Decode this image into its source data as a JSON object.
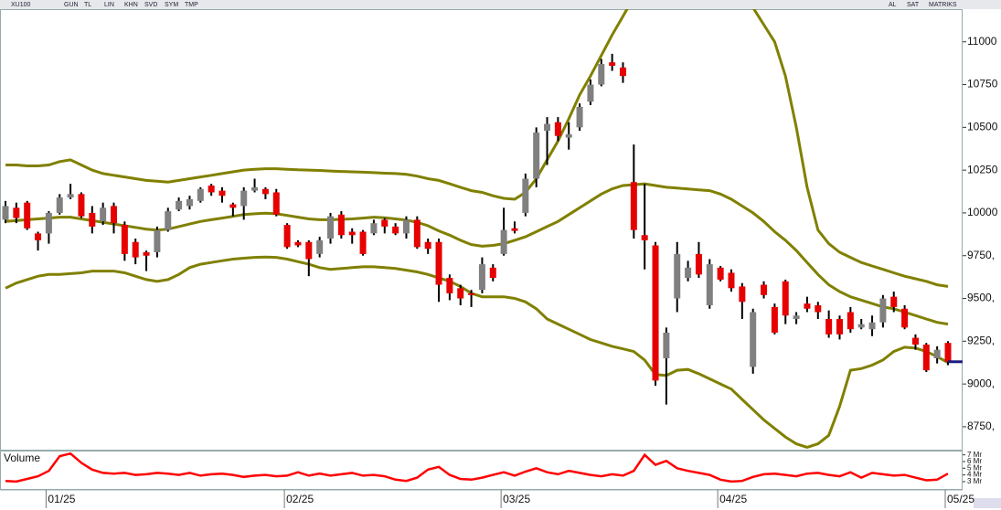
{
  "toolbar": {
    "left": [
      "XU100",
      "GUN",
      "TL",
      "LIN",
      "KHN",
      "SVD",
      "SYM",
      "TMP"
    ],
    "right": [
      "AL",
      "SAT",
      "MATRIKS"
    ]
  },
  "chart_data": {
    "type": "candlestick",
    "up_color": "#808080",
    "down_color": "#e60000",
    "wick_color": "#000000",
    "open": [
      9960,
      10030,
      10060,
      9880,
      9880,
      10000,
      10090,
      10110,
      10000,
      9950,
      10040,
      9930,
      9830,
      9770,
      9770,
      9900,
      10020,
      10040,
      10070,
      10160,
      10130,
      10050,
      10040,
      10130,
      10140,
      10120,
      9930,
      9830,
      9830,
      9760,
      9850,
      9990,
      9890,
      9890,
      9880,
      9960,
      9920,
      9880,
      9960,
      9830,
      9830,
      9620,
      9560,
      9530,
      9550,
      9680,
      9760,
      9910,
      10000,
      10200,
      10480,
      10530,
      10440,
      10500,
      10650,
      10750,
      10880,
      10850,
      10180,
      9870,
      9810,
      9150,
      9500,
      9620,
      9760,
      9460,
      9680,
      9650,
      9570,
      9100,
      9580,
      9450,
      9600,
      9380,
      9470,
      9460,
      9380,
      9380,
      9420,
      9330,
      9320,
      9360,
      9510,
      9440,
      9270,
      9230,
      9150,
      9240
    ],
    "high": [
      10070,
      10060,
      10070,
      9890,
      10010,
      10110,
      10170,
      10120,
      10040,
      10060,
      10060,
      9950,
      9850,
      9780,
      9920,
      10030,
      10090,
      10100,
      10150,
      10170,
      10150,
      10060,
      10150,
      10200,
      10150,
      10140,
      9940,
      9840,
      9840,
      9860,
      10000,
      10010,
      9910,
      9900,
      9960,
      9970,
      9940,
      9980,
      9980,
      9850,
      9850,
      9640,
      9580,
      9550,
      9740,
      9700,
      10030,
      9950,
      10230,
      10500,
      10560,
      10560,
      10530,
      10640,
      10780,
      10900,
      10930,
      10880,
      10400,
      10170,
      9830,
      9330,
      9830,
      9720,
      9830,
      9730,
      9690,
      9670,
      9590,
      9440,
      9600,
      9470,
      9610,
      9420,
      9510,
      9480,
      9430,
      9400,
      9450,
      9380,
      9400,
      9520,
      9540,
      9460,
      9290,
      9240,
      9220,
      9250
    ],
    "low": [
      9940,
      9940,
      9900,
      9780,
      9820,
      9990,
      10080,
      9970,
      9880,
      9930,
      9880,
      9720,
      9700,
      9660,
      9740,
      9890,
      10010,
      10020,
      10060,
      10100,
      10060,
      9980,
      9960,
      10120,
      10080,
      9980,
      9790,
      9800,
      9630,
      9740,
      9820,
      9850,
      9820,
      9750,
      9870,
      9880,
      9870,
      9850,
      9790,
      9760,
      9480,
      9490,
      9460,
      9450,
      9530,
      9600,
      9750,
      9880,
      9980,
      10150,
      10280,
      10420,
      10370,
      10480,
      10630,
      10740,
      10830,
      10760,
      9850,
      9670,
      8990,
      8880,
      9420,
      9600,
      9620,
      9440,
      9600,
      9540,
      9380,
      9060,
      9500,
      9290,
      9350,
      9350,
      9420,
      9380,
      9270,
      9260,
      9300,
      9320,
      9280,
      9330,
      9420,
      9320,
      9200,
      9070,
      9120,
      9110
    ],
    "close": [
      10040,
      9970,
      9910,
      9840,
      10000,
      10090,
      10110,
      9980,
      9920,
      10030,
      9940,
      9760,
      9740,
      9750,
      9900,
      10010,
      10070,
      10080,
      10140,
      10120,
      10100,
      10030,
      10130,
      10150,
      10110,
      9990,
      9800,
      9810,
      9730,
      9840,
      9980,
      9870,
      9870,
      9760,
      9940,
      9920,
      9880,
      9960,
      9800,
      9790,
      9580,
      9530,
      9500,
      9520,
      9700,
      9620,
      9900,
      9895,
      10200,
      10470,
      10520,
      10450,
      10460,
      10620,
      10750,
      10870,
      10860,
      10800,
      9900,
      9840,
      9020,
      9300,
      9760,
      9680,
      9640,
      9700,
      9610,
      9560,
      9480,
      9420,
      9520,
      9300,
      9400,
      9400,
      9440,
      9420,
      9290,
      9290,
      9320,
      9350,
      9360,
      9500,
      9450,
      9330,
      9230,
      9080,
      9200,
      9130
    ],
    "bands": {
      "color": "#808000",
      "upper": [
        10280,
        10280,
        10275,
        10275,
        10280,
        10300,
        10310,
        10280,
        10250,
        10230,
        10220,
        10210,
        10200,
        10190,
        10185,
        10180,
        10190,
        10200,
        10210,
        10220,
        10230,
        10240,
        10250,
        10255,
        10258,
        10258,
        10255,
        10252,
        10250,
        10248,
        10245,
        10242,
        10240,
        10238,
        10235,
        10232,
        10230,
        10225,
        10215,
        10200,
        10190,
        10170,
        10150,
        10130,
        10120,
        10100,
        10085,
        10080,
        10120,
        10200,
        10310,
        10420,
        10550,
        10690,
        10800,
        10920,
        11040,
        11150,
        11260,
        11350,
        11420,
        11460,
        11480,
        11490,
        11480,
        11460,
        11420,
        11360,
        11300,
        11200,
        11100,
        11000,
        10800,
        10500,
        10150,
        9900,
        9820,
        9770,
        9740,
        9710,
        9690,
        9670,
        9650,
        9630,
        9615,
        9600,
        9580,
        9570
      ],
      "middle": [
        9950,
        9955,
        9960,
        9965,
        9970,
        9975,
        9975,
        9965,
        9955,
        9945,
        9935,
        9925,
        9915,
        9905,
        9900,
        9905,
        9920,
        9935,
        9950,
        9960,
        9970,
        9980,
        9990,
        9995,
        9998,
        9995,
        9985,
        9975,
        9965,
        9960,
        9960,
        9962,
        9965,
        9970,
        9975,
        9972,
        9965,
        9958,
        9945,
        9925,
        9895,
        9870,
        9840,
        9815,
        9805,
        9810,
        9820,
        9840,
        9860,
        9890,
        9920,
        9950,
        9990,
        10030,
        10070,
        10110,
        10140,
        10160,
        10165,
        10170,
        10160,
        10150,
        10145,
        10140,
        10135,
        10130,
        10110,
        10080,
        10040,
        10000,
        9950,
        9890,
        9840,
        9780,
        9710,
        9640,
        9580,
        9540,
        9510,
        9490,
        9470,
        9450,
        9440,
        9420,
        9400,
        9380,
        9360,
        9350
      ],
      "lower": [
        9560,
        9590,
        9610,
        9630,
        9640,
        9640,
        9645,
        9650,
        9660,
        9660,
        9660,
        9650,
        9630,
        9610,
        9600,
        9610,
        9640,
        9680,
        9700,
        9710,
        9720,
        9730,
        9735,
        9740,
        9742,
        9740,
        9730,
        9715,
        9700,
        9680,
        9670,
        9675,
        9680,
        9685,
        9685,
        9680,
        9675,
        9665,
        9655,
        9640,
        9620,
        9600,
        9570,
        9530,
        9510,
        9510,
        9510,
        9500,
        9480,
        9440,
        9380,
        9350,
        9320,
        9290,
        9260,
        9240,
        9220,
        9205,
        9190,
        9140,
        9055,
        9050,
        9080,
        9085,
        9060,
        9030,
        9000,
        8970,
        8910,
        8850,
        8790,
        8740,
        8690,
        8650,
        8630,
        8650,
        8700,
        8870,
        9080,
        9090,
        9110,
        9140,
        9190,
        9215,
        9210,
        9190,
        9160,
        9125
      ]
    },
    "last_price_color": "#1a1a80",
    "ylim": [
      8616,
      11191
    ],
    "yticks": [
      11000,
      10750,
      10500,
      10250,
      10000,
      {
        "value": 9750,
        "label": "9750,"
      },
      {
        "value": 9500,
        "label": "9500,"
      },
      {
        "value": 9250,
        "label": "9250,"
      },
      {
        "value": 9000,
        "label": "9000,"
      },
      {
        "value": 8750,
        "label": "8750,"
      }
    ],
    "xticks": [
      {
        "value": 4,
        "label": "01/25"
      },
      {
        "value": 26,
        "label": "02/25"
      },
      {
        "value": 46,
        "label": "03/25"
      },
      {
        "value": 66,
        "label": "04/25"
      },
      {
        "value": 87,
        "label": "05/25"
      }
    ],
    "volume": {
      "title": "Volume",
      "color": "#ff0000",
      "values": [
        3.1,
        3.0,
        3.4,
        3.8,
        4.6,
        6.8,
        7.2,
        5.8,
        4.8,
        4.3,
        4.2,
        4.3,
        4.0,
        4.1,
        4.3,
        4.2,
        4.0,
        4.3,
        3.9,
        4.1,
        4.2,
        4.0,
        3.7,
        3.9,
        4.0,
        3.8,
        3.9,
        4.4,
        3.9,
        4.2,
        3.9,
        4.1,
        4.3,
        3.9,
        4.0,
        3.8,
        3.3,
        3.1,
        3.6,
        4.8,
        5.2,
        4.0,
        3.4,
        3.3,
        3.6,
        4.0,
        4.4,
        3.9,
        4.5,
        5.0,
        4.4,
        4.1,
        4.6,
        4.3,
        4.0,
        3.8,
        4.1,
        3.9,
        4.6,
        7.0,
        5.5,
        6.1,
        5.0,
        4.6,
        4.3,
        4.0,
        3.3,
        3.0,
        3.1,
        3.7,
        4.1,
        4.2,
        4.0,
        3.8,
        4.2,
        4.3,
        4.0,
        3.8,
        4.4,
        3.6,
        4.3,
        4.1,
        3.9,
        4.0,
        3.6,
        3.2,
        3.3,
        4.2
      ],
      "ylim": [
        1.9,
        7.5
      ],
      "yticks": [
        {
          "value": 7,
          "label": "7 Mr"
        },
        {
          "value": 6,
          "label": "6 Mr"
        },
        {
          "value": 5,
          "label": "5 Mr"
        },
        {
          "value": 4,
          "label": "4 Mr"
        },
        {
          "value": 3,
          "label": "3 Mr"
        }
      ]
    }
  }
}
